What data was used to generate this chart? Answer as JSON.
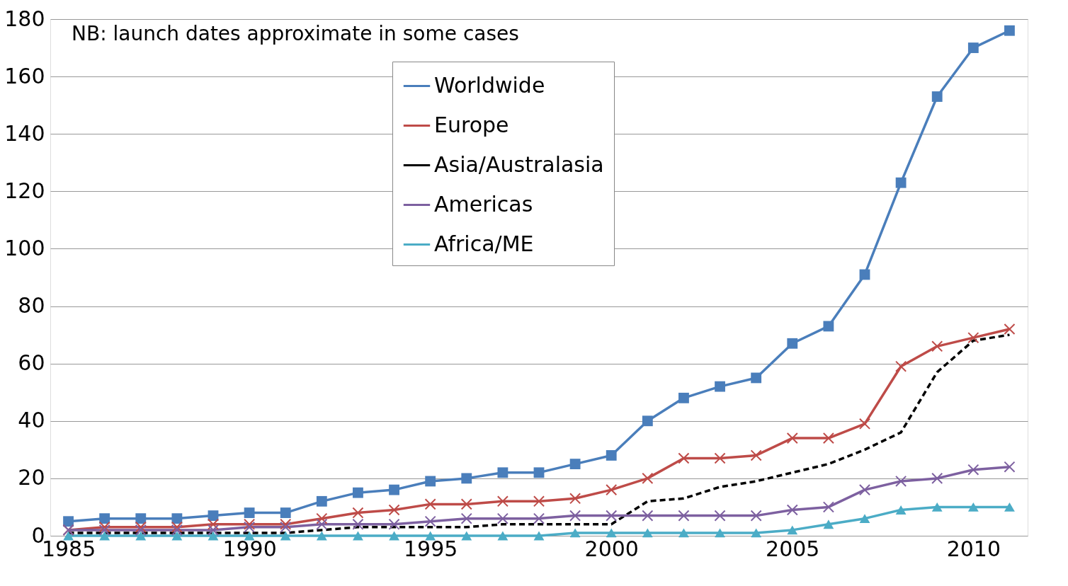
{
  "chart_data": {
    "type": "line",
    "annotations": [
      "NB: launch dates approximate in some cases"
    ],
    "x": [
      1985,
      1986,
      1987,
      1988,
      1989,
      1990,
      1991,
      1992,
      1993,
      1994,
      1995,
      1996,
      1997,
      1998,
      1999,
      2000,
      2001,
      2002,
      2003,
      2004,
      2005,
      2006,
      2007,
      2008,
      2009,
      2010,
      2011
    ],
    "xlim": [
      1984.5,
      2011.5
    ],
    "xticks": [
      1985,
      1990,
      1995,
      2000,
      2005,
      2010
    ],
    "ylim": [
      0,
      180
    ],
    "yticks": [
      0,
      20,
      40,
      60,
      80,
      100,
      120,
      140,
      160,
      180
    ],
    "grid": "y",
    "legend": "top",
    "series": [
      {
        "name": "Worldwide",
        "color": "#4a7ebb",
        "marker": "square",
        "line_style": "solid",
        "values": [
          5,
          6,
          6,
          6,
          7,
          8,
          8,
          12,
          15,
          16,
          19,
          20,
          22,
          22,
          25,
          28,
          40,
          48,
          52,
          55,
          67,
          73,
          91,
          123,
          153,
          170,
          176
        ]
      },
      {
        "name": "Europe",
        "color": "#be4b48",
        "marker": "cross",
        "line_style": "solid",
        "values": [
          2,
          3,
          3,
          3,
          4,
          4,
          4,
          6,
          8,
          9,
          11,
          11,
          12,
          12,
          13,
          16,
          20,
          27,
          27,
          28,
          34,
          34,
          39,
          59,
          66,
          69,
          72
        ]
      },
      {
        "name": "Asia/Australasia",
        "color": "#000000",
        "marker": "none",
        "line_style": "dashed",
        "values": [
          1,
          1,
          1,
          1,
          1,
          1,
          1,
          2,
          3,
          3,
          3,
          3,
          4,
          4,
          4,
          4,
          12,
          13,
          17,
          19,
          22,
          25,
          30,
          36,
          57,
          68,
          70
        ]
      },
      {
        "name": "Americas",
        "color": "#7d60a0",
        "marker": "cross",
        "line_style": "solid",
        "values": [
          2,
          2,
          2,
          2,
          2,
          3,
          3,
          4,
          4,
          4,
          5,
          6,
          6,
          6,
          7,
          7,
          7,
          7,
          7,
          7,
          9,
          10,
          16,
          19,
          20,
          23,
          24
        ]
      },
      {
        "name": "Africa/ME",
        "color": "#4bacc6",
        "marker": "triangle",
        "line_style": "solid",
        "values": [
          0,
          0,
          0,
          0,
          0,
          0,
          0,
          0,
          0,
          0,
          0,
          0,
          0,
          0,
          1,
          1,
          1,
          1,
          1,
          1,
          2,
          4,
          6,
          9,
          10,
          10,
          10
        ]
      }
    ]
  }
}
